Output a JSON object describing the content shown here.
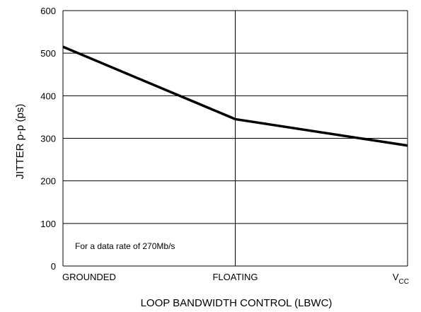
{
  "chart_data": {
    "type": "line",
    "categories": [
      "GROUNDED",
      "FLOATING",
      "VCC"
    ],
    "series": [
      {
        "values": [
          515,
          345,
          283
        ]
      }
    ],
    "ylabel": "JITTER p-p (ps)",
    "xlabel": "LOOP BANDWIDTH CONTROL (LBWC)",
    "ylim": [
      0,
      600
    ],
    "yticks": [
      0,
      100,
      200,
      300,
      400,
      500,
      600
    ],
    "annotation": "For a data rate of 270Mb/s",
    "grid": true,
    "vcc_label": {
      "main": "V",
      "sub": "CC"
    },
    "colors": {
      "line": "#000000",
      "grid": "#000000"
    }
  }
}
